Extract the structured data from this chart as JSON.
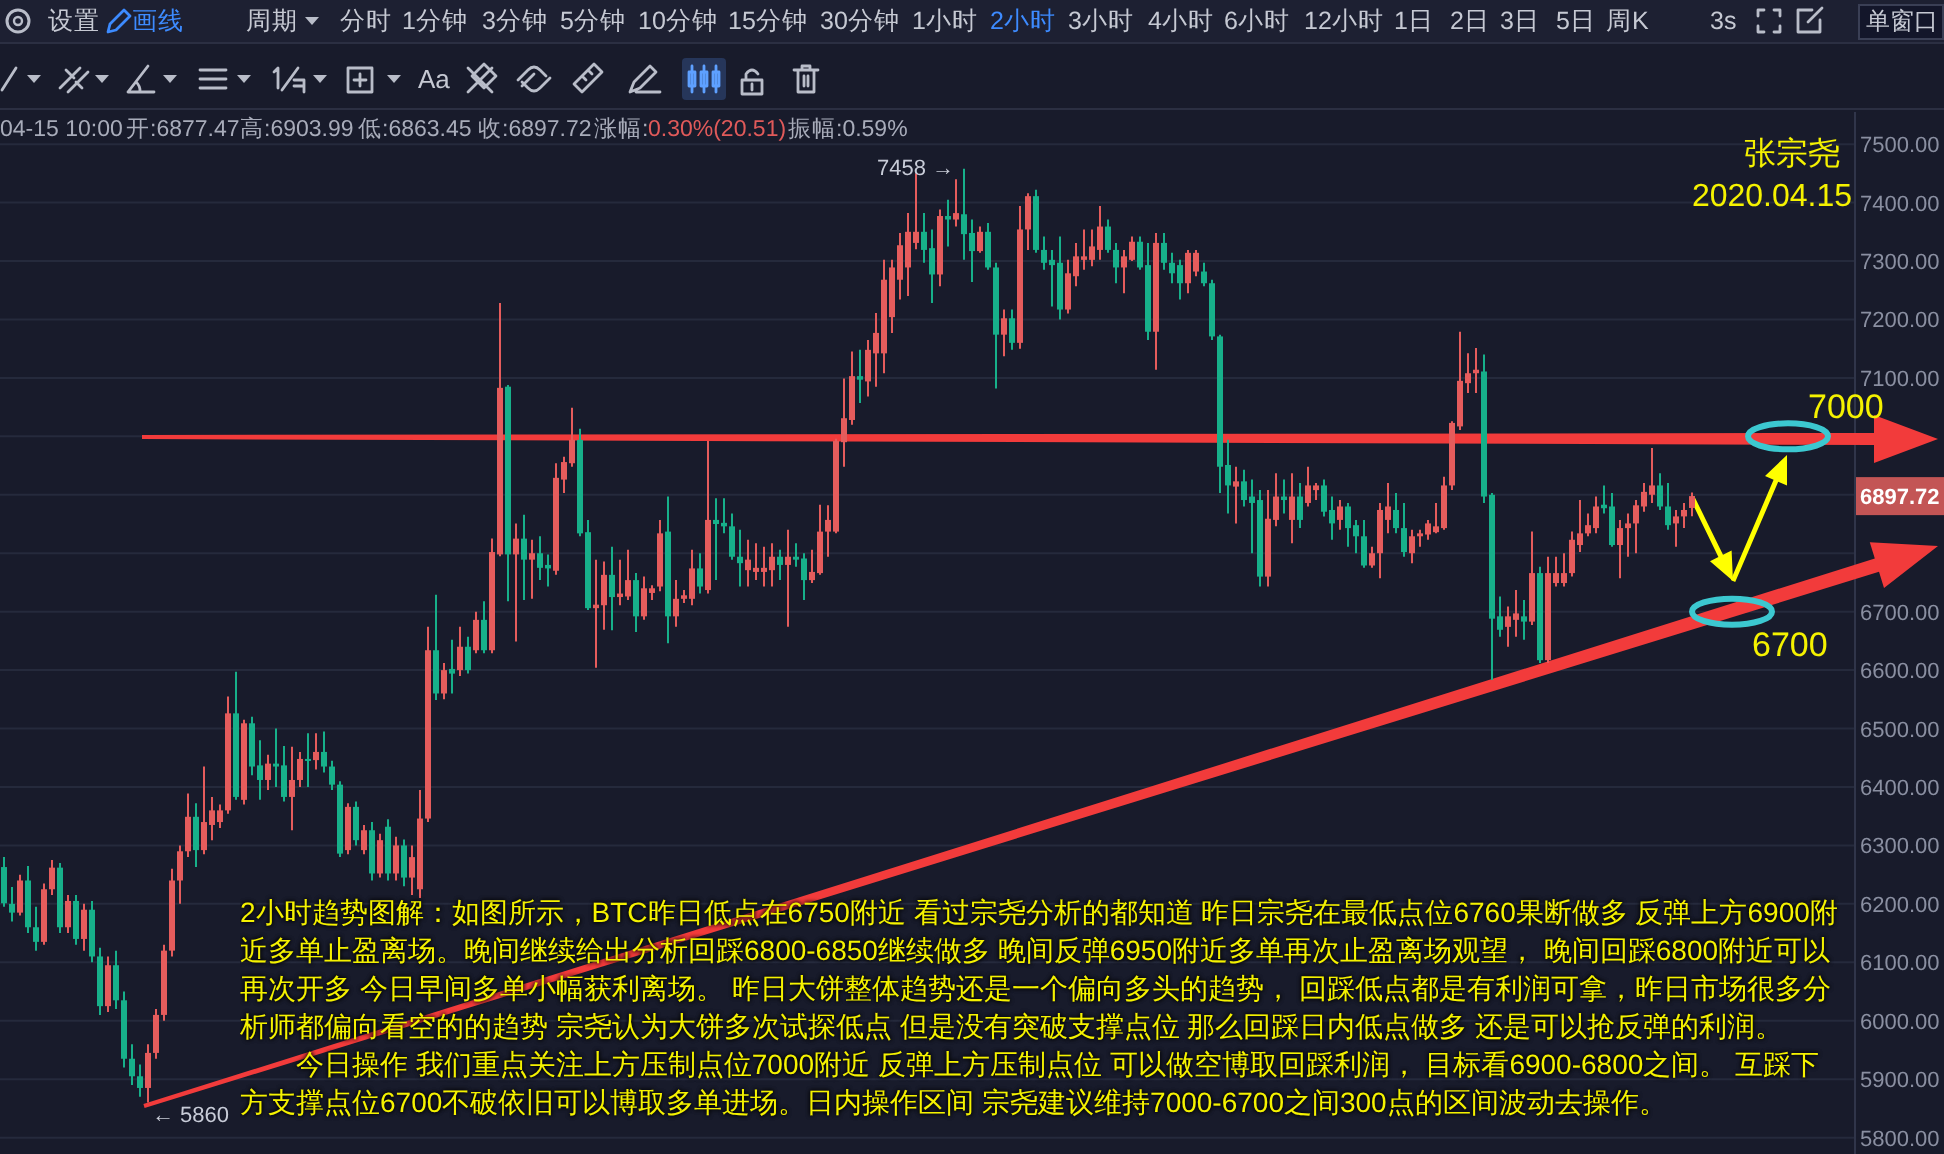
{
  "chart_data": {
    "type": "candlestick",
    "annotations": [
      "设置",
      "画线",
      "周期",
      "分时",
      "1分钟",
      "3分钟",
      "5分钟",
      "10分钟",
      "15分钟",
      "30分钟",
      "1小时",
      "2小时",
      "3小时",
      "4小时",
      "6小时",
      "12小时",
      "1日",
      "2日",
      "3日",
      "5日",
      "周K",
      "3s",
      "单窗口",
      "Aa",
      "04-15 10:00",
      "开:6877.47",
      "高:6903.99",
      "低:6863.45",
      "收:6897.72",
      "涨幅:",
      "0.30%(20.51)",
      "振幅:0.59%",
      {
        "text": "7458 →",
        "y": 7458
      },
      "← 5860",
      {
        "text": "6897.72",
        "y": 6897.72
      },
      "张宗尧",
      "2020.04.15",
      "2小时趋势图解：如图所示，BTC昨日低点在6750附近 看过宗尧分析的都知道 昨日宗尧在最低点位6760果断做多 反弹上方6900附近多单止盈离场。晚间继续给出分析回踩6800-6850继续做多 晚间反弹6950附近多单再次止盈离场观望， 晚间回踩6800附近可以再次开多 今日早间多单小幅获利离场。 昨日大饼整体趋势还是一个偏向多头的趋势， 回踩低点都是有利润可拿，昨日市场很多分析师都偏向看空的的趋势 宗尧认为大饼多次试探低点 但是没有突破支撑点位 那么回踩日内低点做多 还是可以抢反弹的利润。",
      "今日操作 我们重点关注上方压制点位7000附近 反弹上方压制点位 可以做空博取回踩利润， 目标看6900-6800之间。 互踩下方支撑点位6700不破依旧可以博取多单进场。日内操作区间 宗尧建议维持7000-6700之间300点的区间波动去操作。"
    ],
    "categories": [
      null,
      null,
      null,
      null,
      null,
      null,
      null,
      null,
      null,
      null,
      null,
      null,
      null,
      null,
      null,
      null,
      null,
      null,
      null,
      null,
      null,
      null,
      null,
      null,
      null,
      null,
      null,
      null,
      null,
      null,
      null,
      null,
      null,
      null,
      null,
      null,
      null,
      null,
      null,
      null,
      null,
      null,
      null,
      null,
      null,
      null,
      null,
      null,
      null,
      null,
      null,
      null,
      null,
      null,
      null,
      null,
      null,
      null,
      null,
      null,
      null,
      null,
      null,
      null,
      null,
      null,
      null,
      null,
      null,
      null,
      null,
      null,
      null,
      null,
      null,
      null,
      null,
      null,
      null,
      null,
      null,
      null,
      null,
      null,
      null,
      null,
      null,
      null,
      null,
      null,
      null,
      null,
      null,
      null,
      null,
      null,
      null,
      null,
      null,
      null,
      null,
      null,
      null,
      null,
      null,
      null,
      null,
      null,
      null,
      null,
      null,
      null,
      null,
      null,
      null,
      null,
      null,
      null,
      null,
      null,
      null,
      null,
      null,
      null,
      null,
      null,
      null,
      null,
      null,
      null,
      null,
      null,
      null,
      null,
      null,
      null,
      null,
      null,
      null,
      null,
      null,
      null,
      null,
      null,
      null,
      null,
      null,
      null,
      null,
      null,
      null,
      null,
      null,
      null,
      null,
      null,
      null,
      null,
      null,
      null,
      null,
      null,
      null,
      null,
      null,
      null,
      null,
      null,
      null,
      null,
      null,
      null,
      null,
      null,
      null,
      null,
      null,
      null,
      null,
      null,
      null,
      null,
      null,
      null,
      null,
      null,
      null,
      null,
      null,
      null,
      null,
      null,
      null,
      null,
      null,
      null,
      null,
      null,
      null,
      null,
      null,
      null,
      null,
      null,
      null,
      null,
      null,
      null,
      null,
      null,
      null,
      null,
      null,
      null,
      null,
      null,
      null,
      null,
      null,
      null,
      null,
      null,
      null,
      null,
      null,
      null,
      null,
      null,
      null,
      null,
      null,
      null,
      null,
      null,
      null,
      null,
      null,
      null,
      null,
      null,
      null,
      null,
      null
    ],
    "ohlc": [
      [
        6263,
        6280,
        6195,
        6201
      ],
      [
        6200,
        6229,
        6170,
        6185
      ],
      [
        6185,
        6250,
        6180,
        6240
      ],
      [
        6240,
        6265,
        6150,
        6160
      ],
      [
        6160,
        6195,
        6120,
        6135
      ],
      [
        6135,
        6235,
        6130,
        6225
      ],
      [
        6225,
        6275,
        6215,
        6262
      ],
      [
        6262,
        6270,
        6150,
        6160
      ],
      [
        6160,
        6215,
        6150,
        6205
      ],
      [
        6205,
        6215,
        6130,
        6140
      ],
      [
        6140,
        6200,
        6120,
        6190
      ],
      [
        6190,
        6205,
        6100,
        6110
      ],
      [
        6110,
        6125,
        6010,
        6025
      ],
      [
        6025,
        6110,
        6015,
        6095
      ],
      [
        6095,
        6120,
        6020,
        6035
      ],
      [
        6035,
        6050,
        5920,
        5935
      ],
      [
        5935,
        5960,
        5890,
        5905
      ],
      [
        5905,
        5925,
        5870,
        5885
      ],
      [
        5885,
        5960,
        5860,
        5945
      ],
      [
        5945,
        6020,
        5935,
        6010
      ],
      [
        6010,
        6130,
        6000,
        6120
      ],
      [
        6120,
        6260,
        6110,
        6240
      ],
      [
        6240,
        6300,
        6200,
        6290
      ],
      [
        6290,
        6389,
        6280,
        6349
      ],
      [
        6349,
        6372,
        6263,
        6292
      ],
      [
        6292,
        6435,
        6285,
        6340
      ],
      [
        6335,
        6383,
        6309,
        6360
      ],
      [
        6340,
        6370,
        6330,
        6360
      ],
      [
        6360,
        6555,
        6354,
        6526
      ],
      [
        6526,
        6597,
        6378,
        6383
      ],
      [
        6378,
        6515,
        6370,
        6509
      ],
      [
        6509,
        6520,
        6420,
        6435
      ],
      [
        6437,
        6480,
        6378,
        6412
      ],
      [
        6412,
        6455,
        6395,
        6440
      ],
      [
        6440,
        6500,
        6400,
        6435
      ],
      [
        6437,
        6470,
        6375,
        6383
      ],
      [
        6383,
        6469,
        6326,
        6412
      ],
      [
        6412,
        6460,
        6400,
        6448
      ],
      [
        6448,
        6492,
        6400,
        6446
      ],
      [
        6446,
        6492,
        6430,
        6460
      ],
      [
        6460,
        6495,
        6425,
        6435
      ],
      [
        6435,
        6445,
        6395,
        6404
      ],
      [
        6404,
        6410,
        6280,
        6286
      ],
      [
        6292,
        6372,
        6285,
        6366
      ],
      [
        6366,
        6375,
        6300,
        6309
      ],
      [
        6292,
        6335,
        6285,
        6326
      ],
      [
        6326,
        6340,
        6240,
        6252
      ],
      [
        6252,
        6320,
        6245,
        6309
      ],
      [
        6332,
        6345,
        6240,
        6252
      ],
      [
        6252,
        6315,
        6240,
        6300
      ],
      [
        6300,
        6310,
        6230,
        6245
      ],
      [
        6245,
        6300,
        6215,
        6280
      ],
      [
        6225,
        6395,
        6210,
        6346
      ],
      [
        6346,
        6674,
        6340,
        6634
      ],
      [
        6634,
        6729,
        6549,
        6560
      ],
      [
        6560,
        6612,
        6550,
        6600
      ],
      [
        6602,
        6652,
        6560,
        6594
      ],
      [
        6600,
        6674,
        6590,
        6640
      ],
      [
        6640,
        6657,
        6594,
        6600
      ],
      [
        6634,
        6700,
        6629,
        6686
      ],
      [
        6686,
        6718,
        6629,
        6634
      ],
      [
        6634,
        6825,
        6629,
        6802
      ],
      [
        6798,
        7228,
        6795,
        7083
      ],
      [
        7085,
        7088,
        6718,
        6798
      ],
      [
        6798,
        6851,
        6649,
        6825
      ],
      [
        6825,
        6866,
        6720,
        6789
      ],
      [
        6789,
        6823,
        6722,
        6800
      ],
      [
        6800,
        6829,
        6754,
        6775
      ],
      [
        6780,
        6798,
        6743,
        6774
      ],
      [
        6770,
        6954,
        6763,
        6929
      ],
      [
        6926,
        6965,
        6903,
        6956
      ],
      [
        6954,
        7049,
        6948,
        6994
      ],
      [
        6994,
        7013,
        6829,
        6834
      ],
      [
        6836,
        6857,
        6703,
        6706
      ],
      [
        6706,
        6789,
        6604,
        6712
      ],
      [
        6711,
        6786,
        6669,
        6763
      ],
      [
        6763,
        6811,
        6668,
        6725
      ],
      [
        6725,
        6789,
        6711,
        6731
      ],
      [
        6726,
        6806,
        6720,
        6754
      ],
      [
        6754,
        6766,
        6665,
        6692
      ],
      [
        6692,
        6760,
        6686,
        6740
      ],
      [
        6732,
        6745,
        6720,
        6740
      ],
      [
        6743,
        6857,
        6735,
        6834
      ],
      [
        6837,
        6897,
        6646,
        6692
      ],
      [
        6692,
        6754,
        6674,
        6722
      ],
      [
        6722,
        6737,
        6715,
        6728
      ],
      [
        6722,
        6806,
        6711,
        6774
      ],
      [
        6774,
        6800,
        6731,
        6743
      ],
      [
        6737,
        6992,
        6731,
        6857
      ],
      [
        6857,
        6894,
        6754,
        6850
      ],
      [
        6852,
        6894,
        6834,
        6846
      ],
      [
        6846,
        6868,
        6789,
        6794
      ],
      [
        6794,
        6840,
        6743,
        6783
      ],
      [
        6771,
        6823,
        6743,
        6789
      ],
      [
        6768,
        6817,
        6754,
        6775
      ],
      [
        6768,
        6811,
        6743,
        6775
      ],
      [
        6771,
        6817,
        6743,
        6794
      ],
      [
        6794,
        6806,
        6754,
        6780
      ],
      [
        6780,
        6840,
        6674,
        6794
      ],
      [
        6794,
        6817,
        6777,
        6789
      ],
      [
        6791,
        6800,
        6720,
        6754
      ],
      [
        6754,
        6806,
        6749,
        6768
      ],
      [
        6766,
        6883,
        6763,
        6837
      ],
      [
        6837,
        6882,
        6794,
        6857
      ],
      [
        6837,
        6996,
        6834,
        6992
      ],
      [
        6990,
        7099,
        6948,
        7031
      ],
      [
        7028,
        7145,
        7020,
        7103
      ],
      [
        7103,
        7148,
        7057,
        7097
      ],
      [
        7094,
        7165,
        7068,
        7148
      ],
      [
        7142,
        7211,
        7085,
        7177
      ],
      [
        7142,
        7302,
        7108,
        7268
      ],
      [
        7204,
        7302,
        7177,
        7289
      ],
      [
        7268,
        7348,
        7234,
        7327
      ],
      [
        7289,
        7382,
        7240,
        7350
      ],
      [
        7331,
        7450,
        7320,
        7350
      ],
      [
        7350,
        7382,
        7297,
        7319
      ],
      [
        7322,
        7354,
        7228,
        7277
      ],
      [
        7277,
        7388,
        7257,
        7377
      ],
      [
        7377,
        7405,
        7325,
        7371
      ],
      [
        7371,
        7440,
        7359,
        7382
      ],
      [
        7380,
        7458,
        7302,
        7346
      ],
      [
        7348,
        7371,
        7264,
        7317
      ],
      [
        7317,
        7359,
        7314,
        7350
      ],
      [
        7350,
        7365,
        7285,
        7289
      ],
      [
        7289,
        7297,
        7082,
        7174
      ],
      [
        7174,
        7217,
        7137,
        7202
      ],
      [
        7202,
        7217,
        7148,
        7160
      ],
      [
        7160,
        7394,
        7150,
        7354
      ],
      [
        7354,
        7416,
        7319,
        7411
      ],
      [
        7411,
        7422,
        7314,
        7319
      ],
      [
        7319,
        7342,
        7285,
        7297
      ],
      [
        7302,
        7319,
        7222,
        7293
      ],
      [
        7297,
        7342,
        7200,
        7217
      ],
      [
        7217,
        7302,
        7210,
        7279
      ],
      [
        7274,
        7331,
        7257,
        7308
      ],
      [
        7302,
        7354,
        7285,
        7308
      ],
      [
        7302,
        7354,
        7291,
        7325
      ],
      [
        7319,
        7394,
        7302,
        7359
      ],
      [
        7359,
        7371,
        7314,
        7319
      ],
      [
        7319,
        7331,
        7262,
        7289
      ],
      [
        7289,
        7319,
        7245,
        7308
      ],
      [
        7302,
        7342,
        7300,
        7333
      ],
      [
        7333,
        7342,
        7285,
        7289
      ],
      [
        7293,
        7331,
        7165,
        7179
      ],
      [
        7179,
        7348,
        7114,
        7331
      ],
      [
        7331,
        7348,
        7285,
        7297
      ],
      [
        7297,
        7314,
        7262,
        7279
      ],
      [
        7293,
        7302,
        7234,
        7262
      ],
      [
        7262,
        7319,
        7245,
        7314
      ],
      [
        7282,
        7319,
        7274,
        7314
      ],
      [
        7282,
        7297,
        7257,
        7262
      ],
      [
        7262,
        7268,
        7165,
        7171
      ],
      [
        7171,
        7174,
        6903,
        6948
      ],
      [
        6951,
        6994,
        6868,
        6916
      ],
      [
        6914,
        6948,
        6851,
        6923
      ],
      [
        6923,
        6943,
        6880,
        6891
      ],
      [
        6897,
        6926,
        6800,
        6886
      ],
      [
        6891,
        6908,
        6743,
        6760
      ],
      [
        6760,
        6908,
        6743,
        6859
      ],
      [
        6857,
        6937,
        6846,
        6897
      ],
      [
        6897,
        6926,
        6868,
        6891
      ],
      [
        6857,
        6937,
        6817,
        6897
      ],
      [
        6897,
        6920,
        6843,
        6857
      ],
      [
        6886,
        6948,
        6880,
        6916
      ],
      [
        6908,
        6920,
        6891,
        6916
      ],
      [
        6916,
        6926,
        6863,
        6871
      ],
      [
        6874,
        6897,
        6823,
        6851
      ],
      [
        6857,
        6891,
        6840,
        6880
      ],
      [
        6880,
        6886,
        6811,
        6843
      ],
      [
        6848,
        6857,
        6800,
        6829
      ],
      [
        6829,
        6857,
        6775,
        6779
      ],
      [
        6779,
        6811,
        6775,
        6800
      ],
      [
        6800,
        6886,
        6757,
        6874
      ],
      [
        6857,
        6920,
        6834,
        6880
      ],
      [
        6874,
        6903,
        6834,
        6843
      ],
      [
        6843,
        6886,
        6794,
        6802
      ],
      [
        6800,
        6840,
        6783,
        6829
      ],
      [
        6829,
        6840,
        6811,
        6834
      ],
      [
        6832,
        6857,
        6823,
        6851
      ],
      [
        6836,
        6886,
        6834,
        6846
      ],
      [
        6843,
        6931,
        6840,
        6916
      ],
      [
        6916,
        7026,
        6908,
        7023
      ],
      [
        7017,
        7179,
        7011,
        7095
      ],
      [
        7091,
        7142,
        7074,
        7108
      ],
      [
        7108,
        7151,
        7074,
        7114
      ],
      [
        7111,
        7140,
        6886,
        6897
      ],
      [
        6900,
        6903,
        6583,
        6688
      ],
      [
        6692,
        6726,
        6657,
        6669
      ],
      [
        6674,
        6709,
        6640,
        6692
      ],
      [
        6686,
        6737,
        6657,
        6697
      ],
      [
        6692,
        6720,
        6652,
        6683
      ],
      [
        6683,
        6837,
        6677,
        6766
      ],
      [
        6766,
        6777,
        6612,
        6617
      ],
      [
        6617,
        6794,
        6612,
        6766
      ],
      [
        6749,
        6794,
        6743,
        6766
      ],
      [
        6749,
        6800,
        6743,
        6766
      ],
      [
        6766,
        6837,
        6760,
        6823
      ],
      [
        6814,
        6891,
        6802,
        6834
      ],
      [
        6834,
        6868,
        6829,
        6848
      ],
      [
        6843,
        6897,
        6834,
        6880
      ],
      [
        6883,
        6916,
        6868,
        6877
      ],
      [
        6880,
        6903,
        6811,
        6814
      ],
      [
        6814,
        6857,
        6757,
        6843
      ],
      [
        6843,
        6868,
        6794,
        6851
      ],
      [
        6851,
        6891,
        6800,
        6882
      ],
      [
        6880,
        6920,
        6871,
        6905
      ],
      [
        6900,
        6980,
        6886,
        6916
      ],
      [
        6916,
        6937,
        6874,
        6880
      ],
      [
        6880,
        6920,
        6840,
        6848
      ],
      [
        6851,
        6874,
        6811,
        6863
      ],
      [
        6863,
        6886,
        6843,
        6874
      ],
      [
        6877.47,
        6903.99,
        6863.45,
        6897.72
      ],
      null,
      null,
      null,
      null,
      null,
      null,
      null,
      null,
      null,
      null,
      null,
      null,
      null,
      null,
      null,
      null,
      null,
      null,
      null,
      null,
      null,
      null,
      null,
      null,
      null,
      null,
      null,
      null,
      null,
      null,
      null
    ],
    "colors": [
      "#17b08a",
      "#17b08a",
      "#e55c5c",
      "#17b08a",
      "#17b08a",
      "#e55c5c",
      "#e55c5c",
      "#17b08a",
      "#e55c5c",
      "#17b08a",
      "#e55c5c",
      "#17b08a",
      "#17b08a",
      "#e55c5c",
      "#17b08a",
      "#17b08a",
      "#17b08a",
      "#17b08a",
      "#e55c5c",
      "#e55c5c",
      "#e55c5c",
      "#e55c5c",
      "#e55c5c",
      "#e55c5c",
      "#17b08a",
      "#e55c5c",
      "#e55c5c",
      "#e55c5c",
      "#e55c5c",
      "#17b08a",
      "#e55c5c",
      "#17b08a",
      "#17b08a",
      "#e55c5c",
      "#17b08a",
      "#17b08a",
      "#e55c5c",
      "#e55c5c",
      "#17b08a",
      "#e55c5c",
      "#17b08a",
      "#17b08a",
      "#17b08a",
      "#e55c5c",
      "#17b08a",
      "#e55c5c",
      "#17b08a",
      "#e55c5c",
      "#17b08a",
      "#e55c5c",
      "#17b08a",
      "#e55c5c",
      "#e55c5c",
      "#e55c5c",
      "#17b08a",
      "#e55c5c",
      "#17b08a",
      "#e55c5c",
      "#17b08a",
      "#e55c5c",
      "#17b08a",
      "#e55c5c",
      "#e55c5c",
      "#17b08a",
      "#e55c5c",
      "#17b08a",
      "#e55c5c",
      "#17b08a",
      "#17b08a",
      "#e55c5c",
      "#e55c5c",
      "#e55c5c",
      "#17b08a",
      "#17b08a",
      "#e55c5c",
      "#e55c5c",
      "#17b08a",
      "#e55c5c",
      "#e55c5c",
      "#17b08a",
      "#e55c5c",
      "#e55c5c",
      "#e55c5c",
      "#17b08a",
      "#e55c5c",
      "#e55c5c",
      "#e55c5c",
      "#17b08a",
      "#e55c5c",
      "#17b08a",
      "#17b08a",
      "#17b08a",
      "#17b08a",
      "#e55c5c",
      "#e55c5c",
      "#e55c5c",
      "#e55c5c",
      "#17b08a",
      "#e55c5c",
      "#17b08a",
      "#17b08a",
      "#e55c5c",
      "#e55c5c",
      "#e55c5c",
      "#e55c5c",
      "#e55c5c",
      "#e55c5c",
      "#17b08a",
      "#e55c5c",
      "#e55c5c",
      "#e55c5c",
      "#e55c5c",
      "#e55c5c",
      "#e55c5c",
      "#e55c5c",
      "#17b08a",
      "#17b08a",
      "#e55c5c",
      "#17b08a",
      "#e55c5c",
      "#17b08a",
      "#17b08a",
      "#e55c5c",
      "#17b08a",
      "#17b08a",
      "#e55c5c",
      "#17b08a",
      "#e55c5c",
      "#e55c5c",
      "#17b08a",
      "#17b08a",
      "#17b08a",
      "#17b08a",
      "#e55c5c",
      "#e55c5c",
      "#e55c5c",
      "#e55c5c",
      "#e55c5c",
      "#17b08a",
      "#17b08a",
      "#e55c5c",
      "#e55c5c",
      "#17b08a",
      "#17b08a",
      "#e55c5c",
      "#17b08a",
      "#17b08a",
      "#17b08a",
      "#e55c5c",
      "#e55c5c",
      "#17b08a",
      "#17b08a",
      "#17b08a",
      "#17b08a",
      "#e55c5c",
      "#17b08a",
      "#17b08a",
      "#17b08a",
      "#e55c5c",
      "#e55c5c",
      "#17b08a",
      "#e55c5c",
      "#17b08a",
      "#e55c5c",
      "#e55c5c",
      "#17b08a",
      "#17b08a",
      "#e55c5c",
      "#17b08a",
      "#17b08a",
      "#17b08a",
      "#e55c5c",
      "#e55c5c",
      "#e55c5c",
      "#17b08a",
      "#17b08a",
      "#e55c5c",
      "#e55c5c",
      "#e55c5c",
      "#e55c5c",
      "#e55c5c",
      "#e55c5c",
      "#e55c5c",
      "#e55c5c",
      "#e55c5c",
      "#17b08a",
      "#17b08a",
      "#17b08a",
      "#e55c5c",
      "#e55c5c",
      "#17b08a",
      "#e55c5c",
      "#17b08a",
      "#e55c5c",
      "#e55c5c",
      "#e55c5c",
      "#e55c5c",
      "#e55c5c",
      "#e55c5c",
      "#e55c5c",
      "#17b08a",
      "#17b08a",
      "#e55c5c",
      "#e55c5c",
      "#e55c5c",
      "#e55c5c",
      "#e55c5c",
      "#17b08a",
      "#17b08a",
      "#e55c5c",
      "#e55c5c",
      "#e55c5c",
      null,
      null,
      null,
      null,
      null,
      null,
      null,
      null,
      null,
      null,
      null,
      null,
      null,
      null,
      null,
      null,
      null,
      null,
      null,
      null,
      null,
      null,
      null,
      null,
      null,
      null,
      null,
      null,
      null,
      null,
      null
    ],
    "series": [
      {
        "type": "scatter",
        "color": "#3cc8d0",
        "marker": "circle",
        "values": [
          null,
          null,
          null,
          null,
          null,
          null,
          null,
          null,
          null,
          null,
          null,
          null,
          null,
          null,
          null,
          null,
          null,
          null,
          null,
          null,
          null,
          null,
          null,
          null,
          null,
          null,
          null,
          null,
          null,
          null,
          null,
          null,
          null,
          null,
          null,
          null,
          null,
          null,
          null,
          null,
          null,
          null,
          null,
          null,
          null,
          null,
          null,
          null,
          null,
          null,
          null,
          null,
          null,
          null,
          null,
          null,
          null,
          null,
          null,
          null,
          null,
          null,
          null,
          null,
          null,
          null,
          null,
          null,
          null,
          null,
          null,
          null,
          null,
          null,
          null,
          null,
          null,
          null,
          null,
          null,
          null,
          null,
          null,
          null,
          null,
          null,
          null,
          null,
          null,
          null,
          null,
          null,
          null,
          null,
          null,
          null,
          null,
          null,
          null,
          null,
          null,
          null,
          null,
          null,
          null,
          null,
          null,
          null,
          null,
          null,
          null,
          null,
          null,
          null,
          null,
          null,
          null,
          null,
          null,
          null,
          null,
          null,
          null,
          null,
          null,
          null,
          null,
          null,
          null,
          null,
          null,
          null,
          null,
          null,
          null,
          null,
          null,
          null,
          null,
          null,
          null,
          null,
          null,
          null,
          null,
          null,
          null,
          null,
          null,
          null,
          null,
          null,
          null,
          null,
          null,
          null,
          null,
          null,
          null,
          null,
          null,
          null,
          null,
          null,
          null,
          null,
          null,
          null,
          null,
          null,
          null,
          null,
          null,
          null,
          null,
          null,
          null,
          null,
          null,
          null,
          null,
          null,
          null,
          null,
          null,
          null,
          null,
          null,
          null,
          null,
          null,
          null,
          null,
          null,
          null,
          null,
          null,
          null,
          null,
          null,
          null,
          null,
          null,
          null,
          null,
          null,
          null,
          null,
          null,
          null,
          null,
          null,
          null,
          null,
          null,
          null,
          6700,
          null,
          null,
          null,
          null,
          null,
          null,
          7000,
          null,
          null,
          null,
          null,
          null,
          null,
          null,
          null,
          null,
          null,
          null,
          null,
          null,
          null,
          null,
          null,
          null,
          null,
          null
        ],
        "value_labels": [
          null,
          null,
          null,
          null,
          null,
          null,
          null,
          null,
          null,
          null,
          null,
          null,
          null,
          null,
          null,
          null,
          null,
          null,
          null,
          null,
          null,
          null,
          null,
          null,
          null,
          null,
          null,
          null,
          null,
          null,
          null,
          null,
          null,
          null,
          null,
          null,
          null,
          null,
          null,
          null,
          null,
          null,
          null,
          null,
          null,
          null,
          null,
          null,
          null,
          null,
          null,
          null,
          null,
          null,
          null,
          null,
          null,
          null,
          null,
          null,
          null,
          null,
          null,
          null,
          null,
          null,
          null,
          null,
          null,
          null,
          null,
          null,
          null,
          null,
          null,
          null,
          null,
          null,
          null,
          null,
          null,
          null,
          null,
          null,
          null,
          null,
          null,
          null,
          null,
          null,
          null,
          null,
          null,
          null,
          null,
          null,
          null,
          null,
          null,
          null,
          null,
          null,
          null,
          null,
          null,
          null,
          null,
          null,
          null,
          null,
          null,
          null,
          null,
          null,
          null,
          null,
          null,
          null,
          null,
          null,
          null,
          null,
          null,
          null,
          null,
          null,
          null,
          null,
          null,
          null,
          null,
          null,
          null,
          null,
          null,
          null,
          null,
          null,
          null,
          null,
          null,
          null,
          null,
          null,
          null,
          null,
          null,
          null,
          null,
          null,
          null,
          null,
          null,
          null,
          null,
          null,
          null,
          null,
          null,
          null,
          null,
          null,
          null,
          null,
          null,
          null,
          null,
          null,
          null,
          null,
          null,
          null,
          null,
          null,
          null,
          null,
          null,
          null,
          null,
          null,
          null,
          null,
          null,
          null,
          null,
          null,
          null,
          null,
          null,
          null,
          null,
          null,
          null,
          null,
          null,
          null,
          null,
          null,
          null,
          null,
          null,
          null,
          null,
          null,
          null,
          null,
          null,
          null,
          null,
          null,
          null,
          null,
          null,
          null,
          null,
          null,
          "6700",
          null,
          null,
          null,
          null,
          null,
          null,
          "7000",
          null,
          null,
          null,
          null,
          null,
          null,
          null,
          null,
          null,
          null,
          null,
          null,
          null,
          null,
          null,
          null,
          null,
          null,
          null
        ]
      }
    ],
    "ylim": [
      5772,
      7555
    ],
    "yticks": [
      {
        "value": 5800,
        "label": "5800.00"
      },
      {
        "value": 5900,
        "label": "5900.00"
      },
      {
        "value": 6000,
        "label": "6000.00"
      },
      {
        "value": 6100,
        "label": "6100.00"
      },
      {
        "value": 6200,
        "label": "6200.00"
      },
      {
        "value": 6300,
        "label": "6300.00"
      },
      {
        "value": 6400,
        "label": "6400.00"
      },
      {
        "value": 6500,
        "label": "6500.00"
      },
      {
        "value": 6600,
        "label": "6600.00"
      },
      {
        "value": 6700,
        "label": "6700.00"
      },
      {
        "value": 6800,
        "label": null
      },
      {
        "value": 6900,
        "label": null
      },
      {
        "value": 7000,
        "label": null
      },
      {
        "value": 7100,
        "label": "7100.00"
      },
      {
        "value": 7200,
        "label": "7200.00"
      },
      {
        "value": 7300,
        "label": "7300.00"
      },
      {
        "value": 7400,
        "label": "7400.00"
      },
      {
        "value": 7500,
        "label": "7500.00"
      }
    ],
    "grid": "y"
  }
}
